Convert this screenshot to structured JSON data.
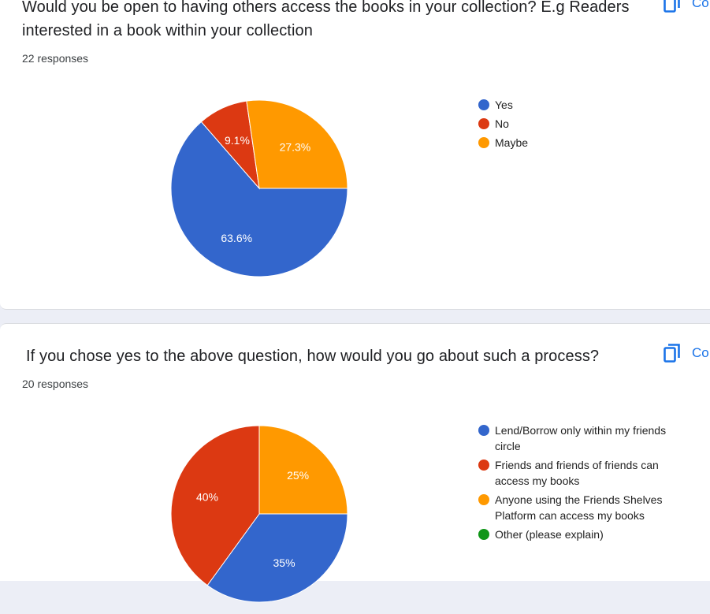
{
  "cards": [
    {
      "question": "Would you be open to having others access the books in your collection? E.g Readers interested in a book within your collection",
      "responses": "22 responses",
      "copy_label": "Co",
      "legend": [
        {
          "label": "Yes",
          "color": "#3366cc"
        },
        {
          "label": "No",
          "color": "#dc3912"
        },
        {
          "label": "Maybe",
          "color": "#ff9900"
        }
      ]
    },
    {
      "question": "If you chose yes to the above question, how would you go about such a process?",
      "responses": "20 responses",
      "copy_label": "Co",
      "legend": [
        {
          "label": "Lend/Borrow only within my friends circle",
          "color": "#3366cc"
        },
        {
          "label": "Friends and friends of friends can access my books",
          "color": "#dc3912"
        },
        {
          "label": "Anyone using the Friends Shelves Platform can access my books",
          "color": "#ff9900"
        },
        {
          "label": "Other (please explain)",
          "color": "#109618"
        }
      ]
    }
  ],
  "chart_data": [
    {
      "type": "pie",
      "categories": [
        "Yes",
        "No",
        "Maybe"
      ],
      "values": [
        63.6,
        9.1,
        27.3
      ],
      "labels": [
        "63.6%",
        "9.1%",
        "27.3%"
      ],
      "colors": [
        "#3366cc",
        "#dc3912",
        "#ff9900"
      ],
      "legend": "right"
    },
    {
      "type": "pie",
      "categories": [
        "Lend/Borrow only within my friends circle",
        "Friends and friends of friends can access my books",
        "Anyone using the Friends Shelves Platform can access my books",
        "Other (please explain)"
      ],
      "values": [
        35,
        40,
        25,
        0
      ],
      "labels": [
        "35%",
        "40%",
        "25%",
        ""
      ],
      "colors": [
        "#3366cc",
        "#dc3912",
        "#ff9900",
        "#109618"
      ],
      "legend": "right"
    }
  ]
}
